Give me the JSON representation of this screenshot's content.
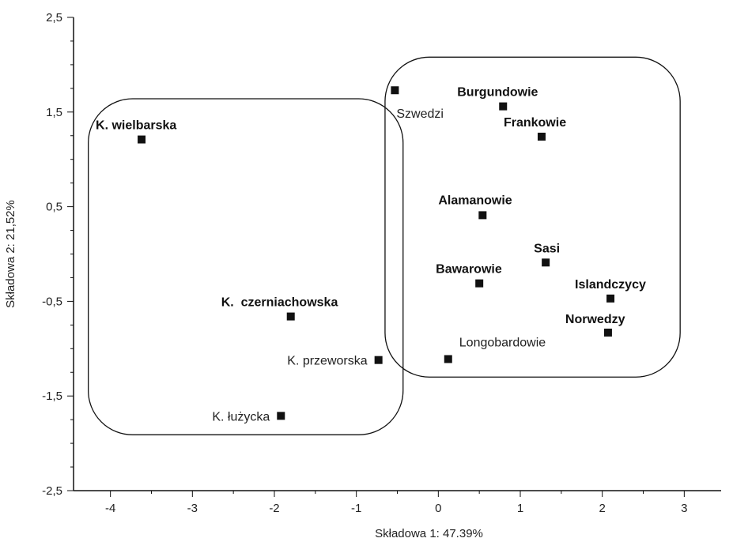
{
  "chart_data": {
    "type": "scatter",
    "xlabel": "Składowa 1: 47.39%",
    "ylabel": "Składowa 2: 21,52%",
    "xlim": [
      -4.45,
      3.45
    ],
    "ylim": [
      -2.5,
      2.5
    ],
    "x_ticks": [
      {
        "value": -4,
        "label": "-4"
      },
      {
        "value": -3,
        "label": "-3"
      },
      {
        "value": -2,
        "label": "-2"
      },
      {
        "value": -1,
        "label": "-1"
      },
      {
        "value": 0,
        "label": "0"
      },
      {
        "value": 1,
        "label": "1"
      },
      {
        "value": 2,
        "label": "2"
      },
      {
        "value": 3,
        "label": "3"
      }
    ],
    "y_ticks": [
      {
        "value": 2.5,
        "label": "2,5"
      },
      {
        "value": 1.5,
        "label": "1,5"
      },
      {
        "value": 0.5,
        "label": "0,5"
      },
      {
        "value": -0.5,
        "label": "-0,5"
      },
      {
        "value": -1.5,
        "label": "-1,5"
      },
      {
        "value": -2.5,
        "label": "-2,5"
      }
    ],
    "points": [
      {
        "label": "K. wielbarska",
        "x": -3.62,
        "y": 1.21,
        "bold": true
      },
      {
        "label": "Szwedzi",
        "x": -0.53,
        "y": 1.73,
        "bold": false
      },
      {
        "label": "Burgundowie",
        "x": 0.79,
        "y": 1.56,
        "bold": true
      },
      {
        "label": "Frankowie",
        "x": 1.26,
        "y": 1.24,
        "bold": true
      },
      {
        "label": "Alamanowie",
        "x": 0.54,
        "y": 0.41,
        "bold": true
      },
      {
        "label": "Sasi",
        "x": 1.31,
        "y": -0.09,
        "bold": true
      },
      {
        "label": "Bawarowie",
        "x": 0.5,
        "y": -0.31,
        "bold": true
      },
      {
        "label": "Islandczycy",
        "x": 2.1,
        "y": -0.47,
        "bold": true
      },
      {
        "label": "K.  czerniachowska",
        "x": -1.8,
        "y": -0.66,
        "bold": true
      },
      {
        "label": "Norwedzy",
        "x": 2.07,
        "y": -0.83,
        "bold": true
      },
      {
        "label": "K. przeworska",
        "x": -0.73,
        "y": -1.12,
        "bold": false
      },
      {
        "label": "Longobardowie",
        "x": 0.12,
        "y": -1.11,
        "bold": false
      },
      {
        "label": "K. łużycka",
        "x": -1.92,
        "y": -1.71,
        "bold": false
      }
    ],
    "clusters": [
      {
        "x_range": [
          -4.27,
          -0.43
        ],
        "y_range": [
          -1.91,
          1.64
        ]
      },
      {
        "x_range": [
          -0.65,
          2.95
        ],
        "y_range": [
          -1.3,
          2.08
        ]
      }
    ],
    "grid": false,
    "legend": "none"
  }
}
